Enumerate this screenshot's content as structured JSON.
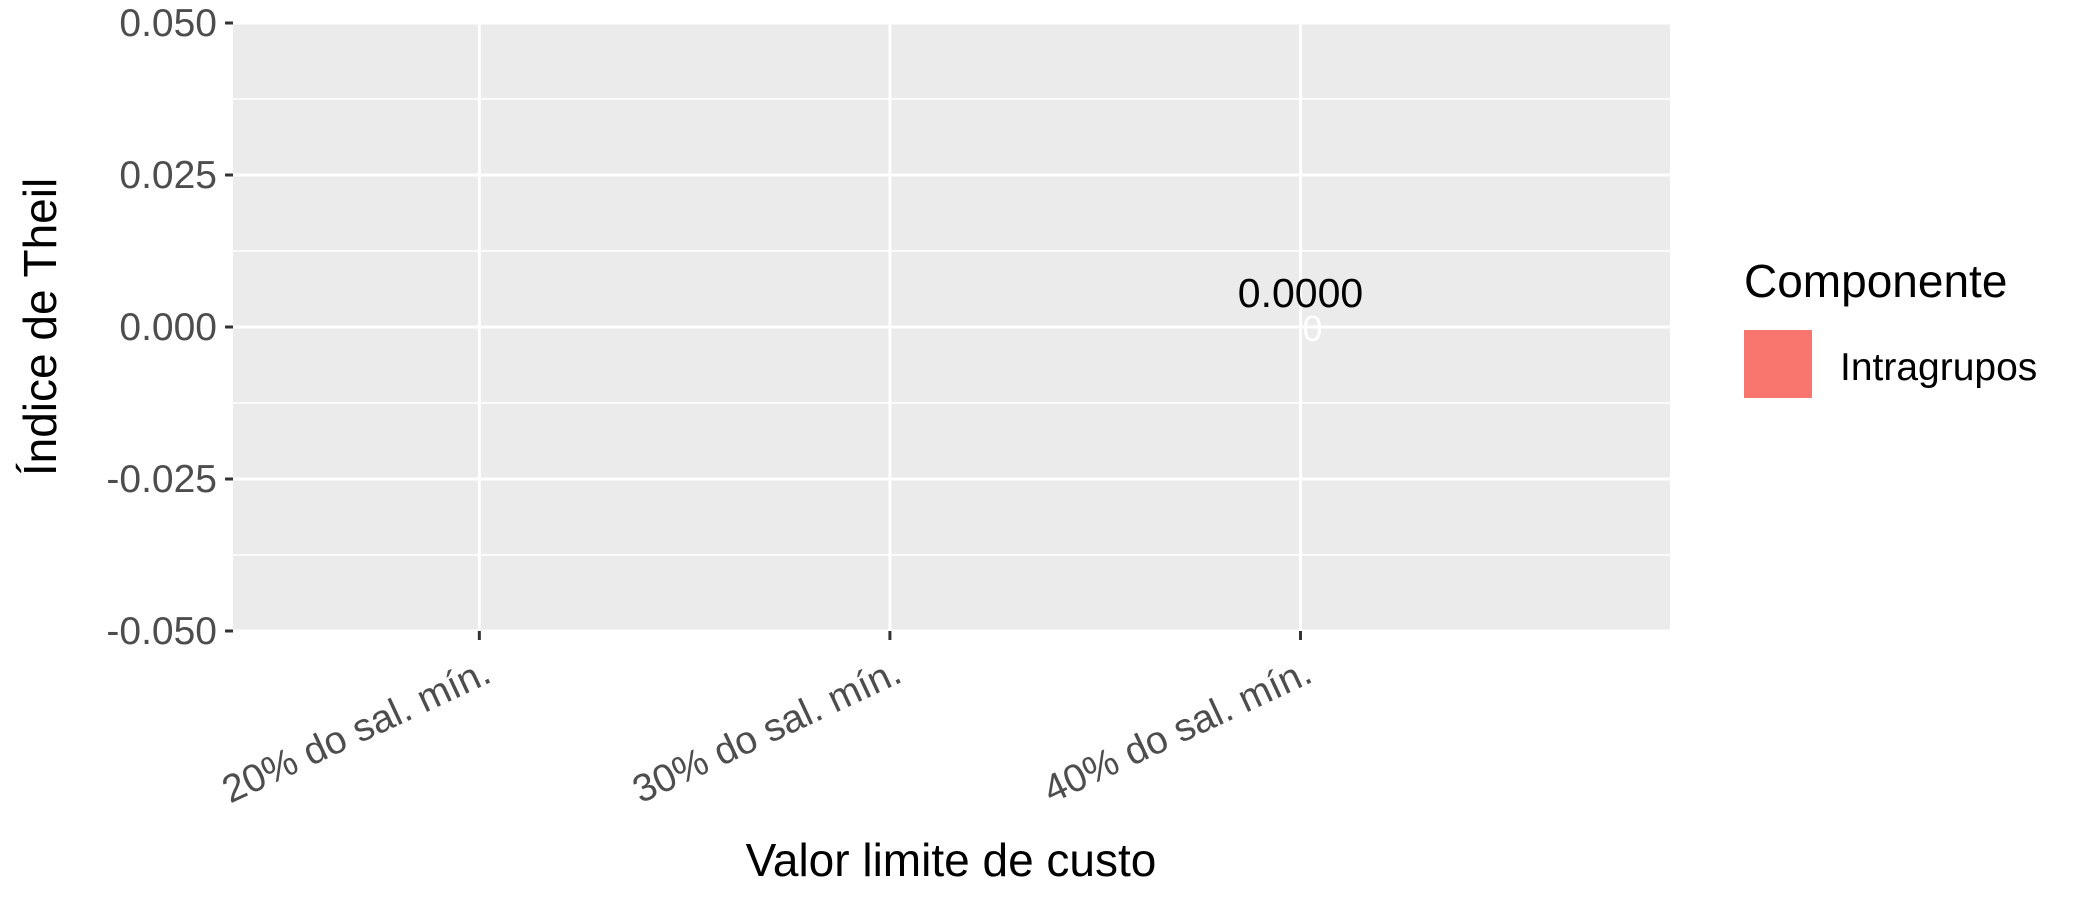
{
  "chart_data": {
    "type": "bar",
    "xlabel": "Valor limite de custo",
    "ylabel": "Índice de Theil",
    "categories": [
      "20% do sal. mín.",
      "30% do sal. mín.",
      "40% do sal. mín."
    ],
    "ylim": [
      -0.05,
      0.05
    ],
    "yticks": [
      {
        "value": 0.05,
        "label": "0.050"
      },
      {
        "value": 0.025,
        "label": "0.025"
      },
      {
        "value": 0.0,
        "label": "0.000"
      },
      {
        "value": -0.025,
        "label": "-0.025"
      },
      {
        "value": -0.05,
        "label": "-0.050"
      }
    ],
    "series": [
      {
        "name": "Intragrupos",
        "color": "#F8766D",
        "values": [
          null,
          null,
          0
        ],
        "inner_labels": [
          null,
          null,
          "0"
        ]
      }
    ],
    "total_labels": [
      null,
      null,
      "0.0000"
    ],
    "grid": true,
    "panel_background": "#EBEBEB",
    "legend": {
      "title": "Componente",
      "position": "right",
      "entries": [
        "Intragrupos"
      ]
    }
  }
}
